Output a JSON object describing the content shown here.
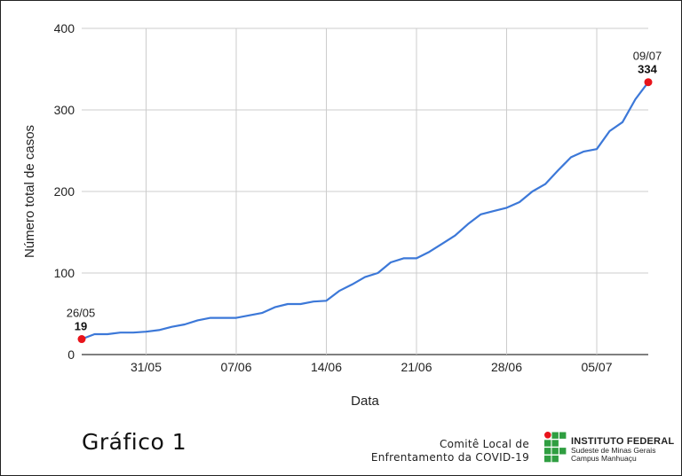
{
  "chart_data": {
    "type": "line",
    "title": "",
    "xlabel": "Data",
    "ylabel": "Número total de casos",
    "ylim": [
      0,
      400
    ],
    "yticks": [
      0,
      100,
      200,
      300,
      400
    ],
    "xlim": [
      "2020-05-26",
      "2020-07-09"
    ],
    "xticks": [
      {
        "date": "2020-05-31",
        "label": "31/05"
      },
      {
        "date": "2020-06-07",
        "label": "07/06"
      },
      {
        "date": "2020-06-14",
        "label": "14/06"
      },
      {
        "date": "2020-06-21",
        "label": "21/06"
      },
      {
        "date": "2020-06-28",
        "label": "28/06"
      },
      {
        "date": "2020-07-05",
        "label": "05/07"
      }
    ],
    "grid": true,
    "line_color": "#3c78d8",
    "marker_color": "#e8141b",
    "series": [
      {
        "name": "",
        "x": [
          "2020-05-26",
          "2020-05-27",
          "2020-05-28",
          "2020-05-29",
          "2020-05-30",
          "2020-05-31",
          "2020-06-01",
          "2020-06-02",
          "2020-06-03",
          "2020-06-04",
          "2020-06-05",
          "2020-06-06",
          "2020-06-07",
          "2020-06-08",
          "2020-06-09",
          "2020-06-10",
          "2020-06-11",
          "2020-06-12",
          "2020-06-13",
          "2020-06-14",
          "2020-06-15",
          "2020-06-16",
          "2020-06-17",
          "2020-06-18",
          "2020-06-19",
          "2020-06-20",
          "2020-06-21",
          "2020-06-22",
          "2020-06-23",
          "2020-06-24",
          "2020-06-25",
          "2020-06-26",
          "2020-06-27",
          "2020-06-28",
          "2020-06-29",
          "2020-06-30",
          "2020-07-01",
          "2020-07-02",
          "2020-07-03",
          "2020-07-04",
          "2020-07-05",
          "2020-07-06",
          "2020-07-07",
          "2020-07-08",
          "2020-07-09"
        ],
        "y": [
          19,
          25,
          25,
          27,
          27,
          28,
          30,
          34,
          37,
          42,
          45,
          45,
          45,
          48,
          51,
          58,
          62,
          62,
          65,
          66,
          78,
          86,
          95,
          100,
          113,
          118,
          118,
          126,
          136,
          146,
          160,
          172,
          176,
          180,
          187,
          200,
          209,
          226,
          242,
          249,
          252,
          274,
          285,
          313,
          334
        ]
      }
    ],
    "annotations": [
      {
        "date_label": "26/05",
        "value_label": "19",
        "x": "2020-05-26",
        "y": 19
      },
      {
        "date_label": "09/07",
        "value_label": "334",
        "x": "2020-07-09",
        "y": 334
      }
    ]
  },
  "caption": {
    "figure_label": "Gráfico 1",
    "committee_line1": "Comitê Local de",
    "committee_line2": "Enfrentamento da COVID-19"
  },
  "logo": {
    "title": "INSTITUTO FEDERAL",
    "line1": "Sudeste de Minas Gerais",
    "line2": "Campus Manhuaçu",
    "green": "#2f9e41",
    "red": "#e8141b"
  }
}
